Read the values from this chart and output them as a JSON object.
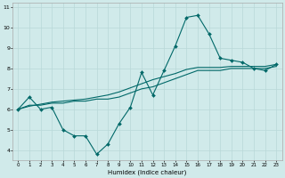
{
  "xlabel": "Humidex (Indice chaleur)",
  "ylabel": "",
  "bg_color": "#d0eaea",
  "grid_color": "#b8d8d8",
  "line_color": "#006868",
  "xlim": [
    -0.5,
    23.5
  ],
  "ylim": [
    3.5,
    11.2
  ],
  "xticks": [
    0,
    1,
    2,
    3,
    4,
    5,
    6,
    7,
    8,
    9,
    10,
    11,
    12,
    13,
    14,
    15,
    16,
    17,
    18,
    19,
    20,
    21,
    22,
    23
  ],
  "yticks": [
    4,
    5,
    6,
    7,
    8,
    9,
    10,
    11
  ],
  "series1_x": [
    0,
    1,
    2,
    3,
    4,
    5,
    6,
    7,
    8,
    9,
    10,
    11,
    12,
    13,
    14,
    15,
    16,
    17,
    18,
    19,
    20,
    21,
    22,
    23
  ],
  "series1_y": [
    6.0,
    6.6,
    6.0,
    6.1,
    5.0,
    4.7,
    4.7,
    3.8,
    4.3,
    5.3,
    6.1,
    7.8,
    6.7,
    7.9,
    9.1,
    10.5,
    10.6,
    9.7,
    8.5,
    8.4,
    8.3,
    8.0,
    7.9,
    8.2
  ],
  "series2_x": [
    0,
    1,
    2,
    3,
    4,
    5,
    6,
    7,
    8,
    9,
    10,
    11,
    12,
    13,
    14,
    15,
    16,
    17,
    18,
    19,
    20,
    21,
    22,
    23
  ],
  "series2_y": [
    6.0,
    6.2,
    6.2,
    6.3,
    6.3,
    6.4,
    6.4,
    6.5,
    6.5,
    6.6,
    6.8,
    7.0,
    7.1,
    7.3,
    7.5,
    7.7,
    7.9,
    7.9,
    7.9,
    8.0,
    8.0,
    8.0,
    8.0,
    8.1
  ],
  "series3_x": [
    0,
    1,
    2,
    3,
    4,
    5,
    6,
    7,
    8,
    9,
    10,
    11,
    12,
    13,
    14,
    15,
    16,
    17,
    18,
    19,
    20,
    21,
    22,
    23
  ],
  "series3_y": [
    6.0,
    6.15,
    6.25,
    6.35,
    6.4,
    6.45,
    6.5,
    6.6,
    6.7,
    6.85,
    7.05,
    7.25,
    7.45,
    7.6,
    7.75,
    7.95,
    8.05,
    8.05,
    8.05,
    8.1,
    8.1,
    8.1,
    8.1,
    8.2
  ]
}
